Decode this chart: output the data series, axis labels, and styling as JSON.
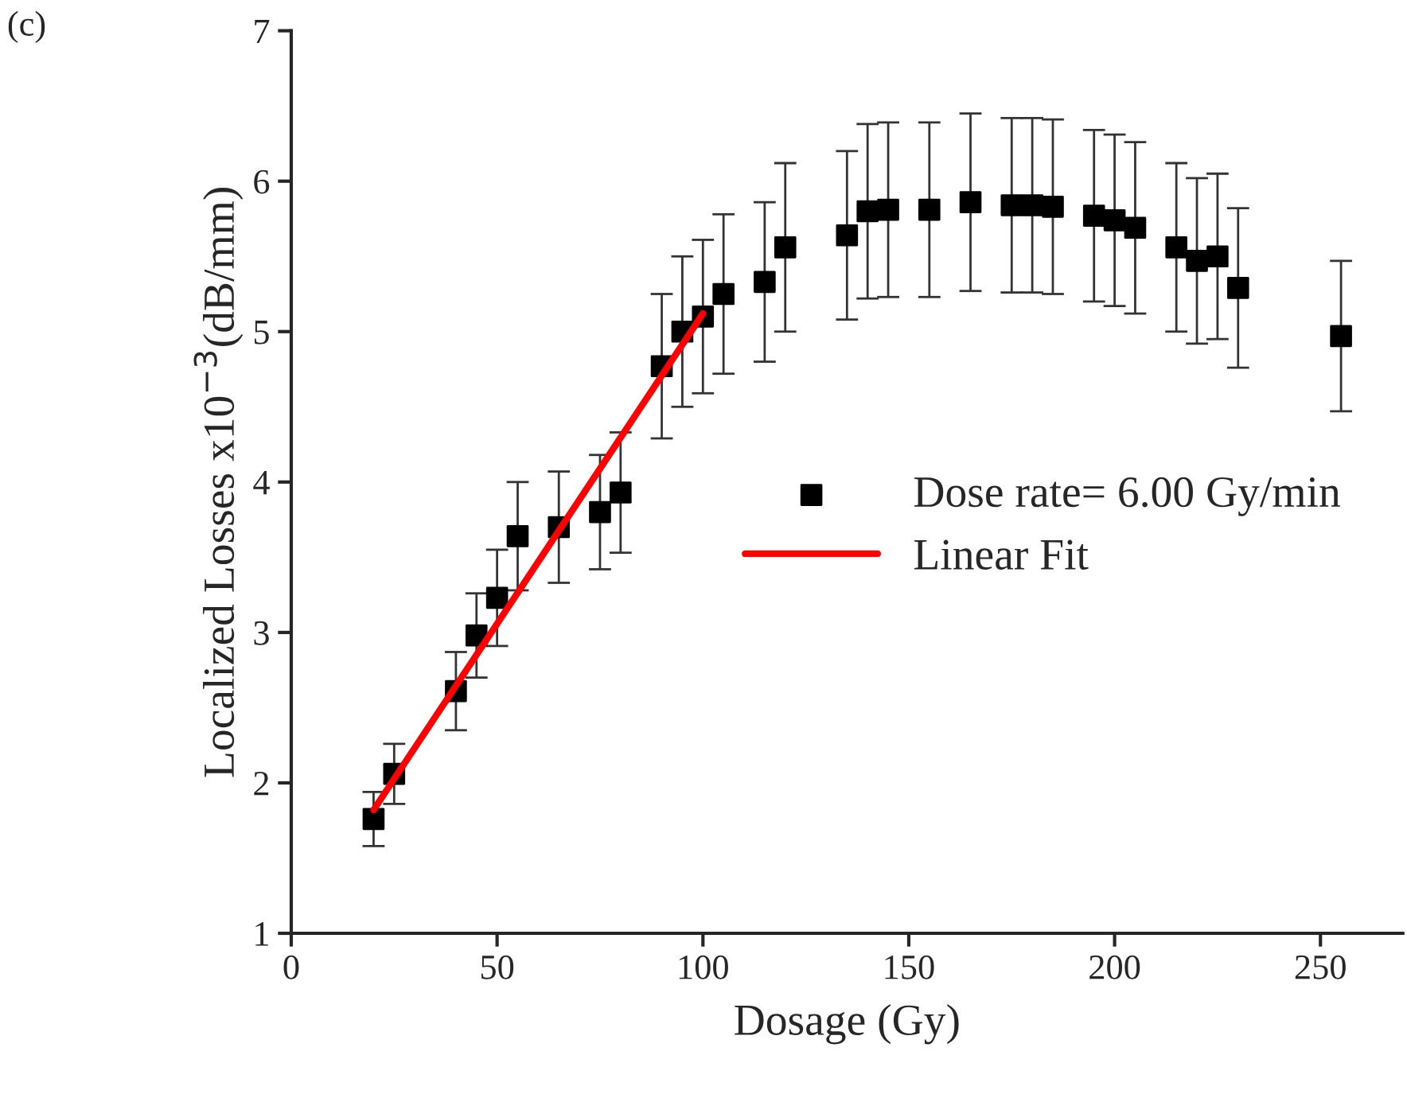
{
  "chart_data": {
    "type": "scatter",
    "title": "(c)",
    "xlabel": "Dosage (Gy)",
    "ylabel": "Localized Losses x10$^{−3}$(dB/mm)",
    "xlim": [
      0,
      270
    ],
    "xticks": [
      0,
      50,
      100,
      150,
      200,
      250
    ],
    "ylim": [
      1,
      7
    ],
    "yticks": [
      1,
      2,
      3,
      4,
      5,
      6,
      7
    ],
    "grid": false,
    "legend": "right",
    "series": [
      {
        "name": "Dose rate= 6.00 Gy/min",
        "marker": "square",
        "color": "#000000",
        "x": [
          20,
          25,
          40,
          45,
          50,
          55,
          65,
          75,
          80,
          90,
          95,
          100,
          105,
          115,
          120,
          135,
          140,
          145,
          155,
          165,
          175,
          180,
          185,
          195,
          200,
          205,
          215,
          220,
          225,
          230,
          255
        ],
        "values": [
          1.76,
          2.06,
          2.61,
          2.98,
          3.23,
          3.64,
          3.7,
          3.8,
          3.93,
          4.77,
          5.0,
          5.1,
          5.25,
          5.33,
          5.56,
          5.64,
          5.8,
          5.81,
          5.81,
          5.86,
          5.84,
          5.84,
          5.83,
          5.77,
          5.74,
          5.69,
          5.56,
          5.47,
          5.5,
          5.29,
          4.97
        ],
        "errors": [
          0.18,
          0.2,
          0.26,
          0.28,
          0.32,
          0.36,
          0.37,
          0.38,
          0.4,
          0.48,
          0.5,
          0.51,
          0.53,
          0.53,
          0.56,
          0.56,
          0.58,
          0.58,
          0.58,
          0.59,
          0.58,
          0.58,
          0.58,
          0.57,
          0.57,
          0.57,
          0.56,
          0.55,
          0.55,
          0.53,
          0.5
        ]
      },
      {
        "name": "Linear Fit",
        "type": "line",
        "marker": "none",
        "color": "#ff0000",
        "x": [
          20,
          100
        ],
        "values": [
          1.82,
          5.12
        ]
      }
    ]
  }
}
